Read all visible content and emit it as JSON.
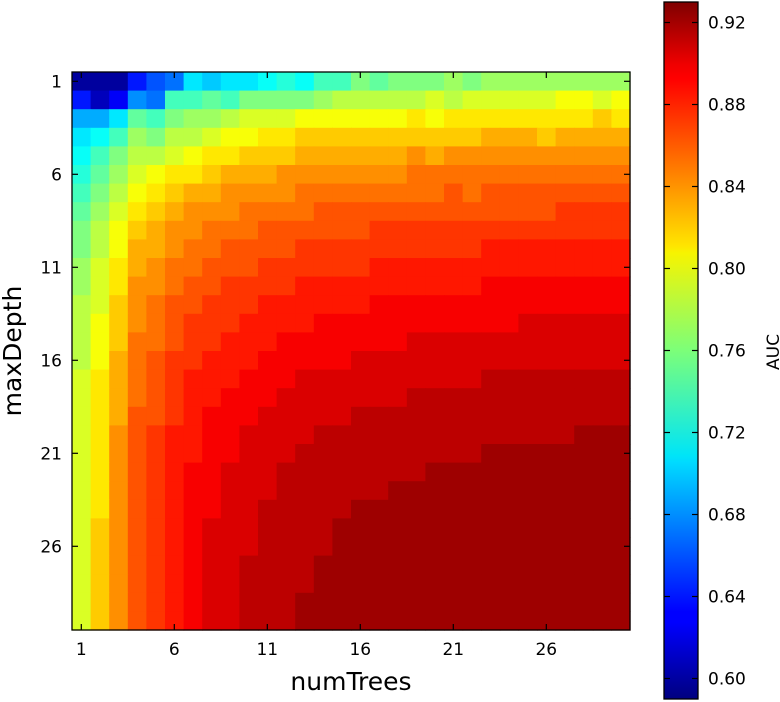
{
  "chart_data": {
    "type": "heatmap",
    "xlabel": "numTrees",
    "ylabel": "maxDepth",
    "x_min": 1,
    "x_max": 30,
    "y_min": 1,
    "y_max": 30,
    "x_ticks": [
      1,
      6,
      11,
      16,
      21,
      26
    ],
    "y_ticks": [
      1,
      6,
      11,
      16,
      21,
      26
    ],
    "colorbar": {
      "label": "AUC",
      "vmin": 0.59,
      "vmax": 0.93,
      "colormap": "jet",
      "ticks": [
        0.6,
        0.64,
        0.68,
        0.72,
        0.76,
        0.8,
        0.84,
        0.88,
        0.92
      ],
      "tick_labels": [
        "0.60",
        "0.64",
        "0.68",
        "0.72",
        "0.76",
        "0.80",
        "0.84",
        "0.88",
        "0.92"
      ]
    },
    "values": [
      [
        0.6,
        0.6,
        0.6,
        0.64,
        0.66,
        0.67,
        0.71,
        0.7,
        0.71,
        0.71,
        0.72,
        0.73,
        0.72,
        0.74,
        0.74,
        0.76,
        0.75,
        0.76,
        0.76,
        0.76,
        0.77,
        0.76,
        0.77,
        0.77,
        0.77,
        0.77,
        0.77,
        0.77,
        0.77,
        0.77
      ],
      [
        0.64,
        0.61,
        0.63,
        0.68,
        0.67,
        0.74,
        0.74,
        0.75,
        0.74,
        0.76,
        0.76,
        0.76,
        0.76,
        0.77,
        0.78,
        0.78,
        0.78,
        0.78,
        0.78,
        0.79,
        0.78,
        0.79,
        0.79,
        0.79,
        0.79,
        0.79,
        0.8,
        0.8,
        0.79,
        0.8
      ],
      [
        0.69,
        0.69,
        0.71,
        0.75,
        0.74,
        0.76,
        0.77,
        0.77,
        0.78,
        0.79,
        0.79,
        0.79,
        0.8,
        0.8,
        0.8,
        0.8,
        0.8,
        0.8,
        0.81,
        0.8,
        0.81,
        0.81,
        0.81,
        0.81,
        0.81,
        0.81,
        0.81,
        0.81,
        0.82,
        0.81
      ],
      [
        0.71,
        0.72,
        0.74,
        0.77,
        0.76,
        0.78,
        0.78,
        0.79,
        0.8,
        0.8,
        0.81,
        0.81,
        0.82,
        0.82,
        0.82,
        0.82,
        0.82,
        0.82,
        0.82,
        0.82,
        0.82,
        0.82,
        0.83,
        0.83,
        0.83,
        0.82,
        0.83,
        0.83,
        0.83,
        0.83
      ],
      [
        0.72,
        0.74,
        0.76,
        0.78,
        0.78,
        0.79,
        0.8,
        0.81,
        0.81,
        0.82,
        0.82,
        0.82,
        0.83,
        0.83,
        0.83,
        0.83,
        0.83,
        0.83,
        0.84,
        0.83,
        0.84,
        0.84,
        0.84,
        0.84,
        0.84,
        0.84,
        0.84,
        0.84,
        0.84,
        0.84
      ],
      [
        0.73,
        0.75,
        0.77,
        0.79,
        0.8,
        0.81,
        0.81,
        0.82,
        0.83,
        0.83,
        0.83,
        0.84,
        0.84,
        0.84,
        0.84,
        0.84,
        0.84,
        0.84,
        0.85,
        0.85,
        0.85,
        0.85,
        0.85,
        0.85,
        0.85,
        0.85,
        0.85,
        0.85,
        0.85,
        0.85
      ],
      [
        0.74,
        0.76,
        0.78,
        0.8,
        0.81,
        0.82,
        0.83,
        0.83,
        0.84,
        0.84,
        0.84,
        0.84,
        0.85,
        0.85,
        0.85,
        0.85,
        0.85,
        0.85,
        0.85,
        0.85,
        0.86,
        0.85,
        0.86,
        0.86,
        0.86,
        0.86,
        0.86,
        0.86,
        0.86,
        0.86
      ],
      [
        0.75,
        0.77,
        0.79,
        0.81,
        0.82,
        0.83,
        0.84,
        0.84,
        0.84,
        0.85,
        0.85,
        0.85,
        0.85,
        0.86,
        0.86,
        0.86,
        0.86,
        0.86,
        0.86,
        0.86,
        0.86,
        0.86,
        0.86,
        0.86,
        0.86,
        0.86,
        0.87,
        0.87,
        0.87,
        0.87
      ],
      [
        0.76,
        0.78,
        0.8,
        0.82,
        0.83,
        0.84,
        0.84,
        0.85,
        0.85,
        0.85,
        0.86,
        0.86,
        0.86,
        0.86,
        0.86,
        0.86,
        0.87,
        0.87,
        0.87,
        0.87,
        0.87,
        0.87,
        0.87,
        0.87,
        0.87,
        0.87,
        0.87,
        0.87,
        0.87,
        0.87
      ],
      [
        0.76,
        0.78,
        0.8,
        0.83,
        0.83,
        0.84,
        0.85,
        0.85,
        0.86,
        0.86,
        0.86,
        0.86,
        0.87,
        0.87,
        0.87,
        0.87,
        0.87,
        0.87,
        0.87,
        0.87,
        0.87,
        0.87,
        0.88,
        0.88,
        0.88,
        0.88,
        0.88,
        0.88,
        0.88,
        0.88
      ],
      [
        0.77,
        0.79,
        0.81,
        0.83,
        0.84,
        0.85,
        0.85,
        0.86,
        0.86,
        0.86,
        0.87,
        0.87,
        0.87,
        0.87,
        0.87,
        0.87,
        0.88,
        0.88,
        0.88,
        0.88,
        0.88,
        0.88,
        0.88,
        0.88,
        0.88,
        0.88,
        0.88,
        0.88,
        0.88,
        0.88
      ],
      [
        0.77,
        0.79,
        0.81,
        0.84,
        0.84,
        0.85,
        0.86,
        0.86,
        0.87,
        0.87,
        0.87,
        0.87,
        0.88,
        0.88,
        0.88,
        0.88,
        0.88,
        0.88,
        0.88,
        0.88,
        0.88,
        0.88,
        0.89,
        0.89,
        0.89,
        0.89,
        0.89,
        0.89,
        0.89,
        0.89
      ],
      [
        0.78,
        0.79,
        0.82,
        0.84,
        0.85,
        0.86,
        0.86,
        0.87,
        0.87,
        0.87,
        0.88,
        0.88,
        0.88,
        0.88,
        0.88,
        0.88,
        0.89,
        0.89,
        0.89,
        0.89,
        0.89,
        0.89,
        0.89,
        0.89,
        0.89,
        0.89,
        0.89,
        0.89,
        0.89,
        0.89
      ],
      [
        0.78,
        0.8,
        0.82,
        0.84,
        0.85,
        0.86,
        0.87,
        0.87,
        0.87,
        0.88,
        0.88,
        0.88,
        0.88,
        0.89,
        0.89,
        0.89,
        0.89,
        0.89,
        0.89,
        0.89,
        0.89,
        0.89,
        0.89,
        0.89,
        0.9,
        0.9,
        0.9,
        0.9,
        0.9,
        0.9
      ],
      [
        0.78,
        0.8,
        0.82,
        0.85,
        0.85,
        0.86,
        0.87,
        0.87,
        0.88,
        0.88,
        0.88,
        0.89,
        0.89,
        0.89,
        0.89,
        0.89,
        0.89,
        0.89,
        0.9,
        0.9,
        0.9,
        0.9,
        0.9,
        0.9,
        0.9,
        0.9,
        0.9,
        0.9,
        0.9,
        0.9
      ],
      [
        0.78,
        0.8,
        0.83,
        0.85,
        0.86,
        0.87,
        0.87,
        0.88,
        0.88,
        0.88,
        0.89,
        0.89,
        0.89,
        0.89,
        0.89,
        0.9,
        0.9,
        0.9,
        0.9,
        0.9,
        0.9,
        0.9,
        0.9,
        0.9,
        0.9,
        0.9,
        0.9,
        0.9,
        0.9,
        0.9
      ],
      [
        0.79,
        0.81,
        0.83,
        0.85,
        0.86,
        0.87,
        0.88,
        0.88,
        0.88,
        0.89,
        0.89,
        0.89,
        0.9,
        0.9,
        0.9,
        0.9,
        0.9,
        0.9,
        0.9,
        0.9,
        0.9,
        0.9,
        0.91,
        0.91,
        0.91,
        0.91,
        0.91,
        0.91,
        0.91,
        0.91
      ],
      [
        0.79,
        0.81,
        0.83,
        0.85,
        0.86,
        0.87,
        0.88,
        0.88,
        0.89,
        0.89,
        0.89,
        0.9,
        0.9,
        0.9,
        0.9,
        0.9,
        0.9,
        0.9,
        0.91,
        0.91,
        0.91,
        0.91,
        0.91,
        0.91,
        0.91,
        0.91,
        0.91,
        0.91,
        0.91,
        0.91
      ],
      [
        0.79,
        0.81,
        0.83,
        0.86,
        0.86,
        0.87,
        0.88,
        0.89,
        0.89,
        0.89,
        0.9,
        0.9,
        0.9,
        0.9,
        0.9,
        0.91,
        0.91,
        0.91,
        0.91,
        0.91,
        0.91,
        0.91,
        0.91,
        0.91,
        0.91,
        0.91,
        0.91,
        0.91,
        0.91,
        0.91
      ],
      [
        0.79,
        0.81,
        0.84,
        0.86,
        0.87,
        0.88,
        0.88,
        0.89,
        0.89,
        0.9,
        0.9,
        0.9,
        0.9,
        0.91,
        0.91,
        0.91,
        0.91,
        0.91,
        0.91,
        0.91,
        0.91,
        0.91,
        0.91,
        0.91,
        0.91,
        0.91,
        0.91,
        0.92,
        0.92,
        0.92
      ],
      [
        0.79,
        0.81,
        0.84,
        0.86,
        0.87,
        0.88,
        0.88,
        0.89,
        0.89,
        0.9,
        0.9,
        0.9,
        0.91,
        0.91,
        0.91,
        0.91,
        0.91,
        0.91,
        0.91,
        0.91,
        0.91,
        0.91,
        0.92,
        0.92,
        0.92,
        0.92,
        0.92,
        0.92,
        0.92,
        0.92
      ],
      [
        0.79,
        0.81,
        0.84,
        0.86,
        0.87,
        0.88,
        0.89,
        0.89,
        0.9,
        0.9,
        0.9,
        0.91,
        0.91,
        0.91,
        0.91,
        0.91,
        0.91,
        0.91,
        0.91,
        0.92,
        0.92,
        0.92,
        0.92,
        0.92,
        0.92,
        0.92,
        0.92,
        0.92,
        0.92,
        0.92
      ],
      [
        0.79,
        0.81,
        0.84,
        0.86,
        0.87,
        0.88,
        0.89,
        0.89,
        0.9,
        0.9,
        0.9,
        0.91,
        0.91,
        0.91,
        0.91,
        0.91,
        0.91,
        0.92,
        0.92,
        0.92,
        0.92,
        0.92,
        0.92,
        0.92,
        0.92,
        0.92,
        0.92,
        0.92,
        0.92,
        0.92
      ],
      [
        0.79,
        0.81,
        0.84,
        0.86,
        0.87,
        0.88,
        0.89,
        0.89,
        0.9,
        0.9,
        0.91,
        0.91,
        0.91,
        0.91,
        0.91,
        0.92,
        0.92,
        0.92,
        0.92,
        0.92,
        0.92,
        0.92,
        0.92,
        0.92,
        0.92,
        0.92,
        0.92,
        0.92,
        0.92,
        0.92
      ],
      [
        0.79,
        0.82,
        0.84,
        0.86,
        0.87,
        0.88,
        0.89,
        0.9,
        0.9,
        0.9,
        0.91,
        0.91,
        0.91,
        0.91,
        0.92,
        0.92,
        0.92,
        0.92,
        0.92,
        0.92,
        0.92,
        0.92,
        0.92,
        0.92,
        0.92,
        0.92,
        0.92,
        0.92,
        0.92,
        0.92
      ],
      [
        0.79,
        0.82,
        0.84,
        0.86,
        0.87,
        0.88,
        0.89,
        0.9,
        0.9,
        0.9,
        0.91,
        0.91,
        0.91,
        0.91,
        0.92,
        0.92,
        0.92,
        0.92,
        0.92,
        0.92,
        0.92,
        0.92,
        0.92,
        0.92,
        0.92,
        0.92,
        0.92,
        0.92,
        0.92,
        0.92
      ],
      [
        0.79,
        0.82,
        0.84,
        0.86,
        0.87,
        0.88,
        0.89,
        0.9,
        0.9,
        0.91,
        0.91,
        0.91,
        0.91,
        0.92,
        0.92,
        0.92,
        0.92,
        0.92,
        0.92,
        0.92,
        0.92,
        0.92,
        0.92,
        0.92,
        0.92,
        0.92,
        0.92,
        0.92,
        0.92,
        0.92
      ],
      [
        0.79,
        0.82,
        0.84,
        0.86,
        0.87,
        0.88,
        0.89,
        0.9,
        0.9,
        0.91,
        0.91,
        0.91,
        0.91,
        0.92,
        0.92,
        0.92,
        0.92,
        0.92,
        0.92,
        0.92,
        0.92,
        0.92,
        0.92,
        0.92,
        0.92,
        0.92,
        0.92,
        0.92,
        0.92,
        0.92
      ],
      [
        0.79,
        0.82,
        0.84,
        0.86,
        0.87,
        0.88,
        0.89,
        0.9,
        0.9,
        0.91,
        0.91,
        0.91,
        0.92,
        0.92,
        0.92,
        0.92,
        0.92,
        0.92,
        0.92,
        0.92,
        0.92,
        0.92,
        0.92,
        0.92,
        0.92,
        0.92,
        0.92,
        0.92,
        0.92,
        0.92
      ],
      [
        0.79,
        0.82,
        0.84,
        0.86,
        0.87,
        0.88,
        0.89,
        0.9,
        0.9,
        0.91,
        0.91,
        0.91,
        0.92,
        0.92,
        0.92,
        0.92,
        0.92,
        0.92,
        0.92,
        0.92,
        0.92,
        0.92,
        0.92,
        0.92,
        0.92,
        0.92,
        0.92,
        0.92,
        0.92,
        0.92
      ]
    ]
  }
}
